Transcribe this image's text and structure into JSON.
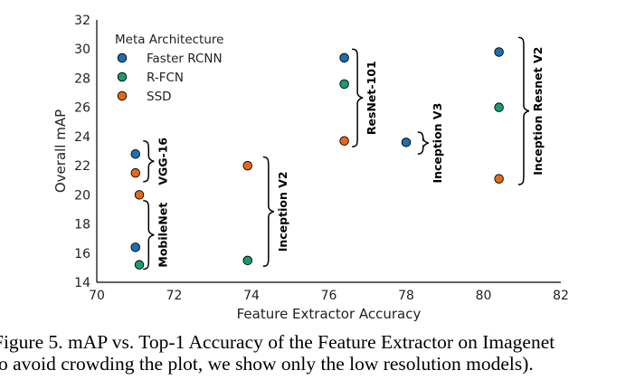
{
  "chart_data": {
    "type": "scatter",
    "xlabel": "Feature Extractor Accuracy",
    "ylabel": "Overall mAP",
    "xlim": [
      70,
      82
    ],
    "ylim": [
      14,
      32
    ],
    "x_ticks": [
      70,
      72,
      74,
      76,
      78,
      80,
      82
    ],
    "y_ticks": [
      14,
      16,
      18,
      20,
      22,
      24,
      26,
      28,
      30,
      32
    ],
    "grid": false,
    "legend": {
      "title": "Meta Architecture",
      "position": "top-left"
    },
    "series": [
      {
        "name": "Faster RCNN",
        "color": "#1f6fad",
        "points": [
          {
            "x": 71.0,
            "y": 22.8
          },
          {
            "x": 71.0,
            "y": 16.4
          },
          {
            "x": 76.4,
            "y": 29.4
          },
          {
            "x": 78.0,
            "y": 23.6
          },
          {
            "x": 80.4,
            "y": 29.8
          }
        ]
      },
      {
        "name": "R-FCN",
        "color": "#1a9a73",
        "points": [
          {
            "x": 71.1,
            "y": 15.2
          },
          {
            "x": 73.9,
            "y": 15.5
          },
          {
            "x": 76.4,
            "y": 27.6
          },
          {
            "x": 80.4,
            "y": 26.0
          }
        ]
      },
      {
        "name": "SSD",
        "color": "#e06b1c",
        "points": [
          {
            "x": 71.0,
            "y": 21.5
          },
          {
            "x": 71.1,
            "y": 20.0
          },
          {
            "x": 73.9,
            "y": 22.0
          },
          {
            "x": 76.4,
            "y": 23.7
          },
          {
            "x": 80.4,
            "y": 21.1
          }
        ]
      }
    ],
    "annotations": [
      {
        "label": "VGG-16",
        "x": 71.2,
        "y_range": [
          20.9,
          23.7
        ]
      },
      {
        "label": "MobileNet",
        "x": 71.2,
        "y_range": [
          14.9,
          19.6
        ]
      },
      {
        "label": "Inception V2",
        "x": 74.3,
        "y_range": [
          15.1,
          22.6
        ]
      },
      {
        "label": "ResNet-101",
        "x": 76.6,
        "y_range": [
          23.3,
          30.0
        ]
      },
      {
        "label": "Inception V3",
        "x": 78.3,
        "y_range": [
          22.8,
          24.3
        ]
      },
      {
        "label": "Inception Resnet V2",
        "x": 80.9,
        "y_range": [
          20.7,
          30.8
        ]
      }
    ]
  },
  "caption": {
    "line1": "Figure 5.  mAP vs. Top-1 Accuracy of the Feature Extractor on Imagenet",
    "line2": "to avoid crowding the plot, we show only the low resolution models)."
  }
}
